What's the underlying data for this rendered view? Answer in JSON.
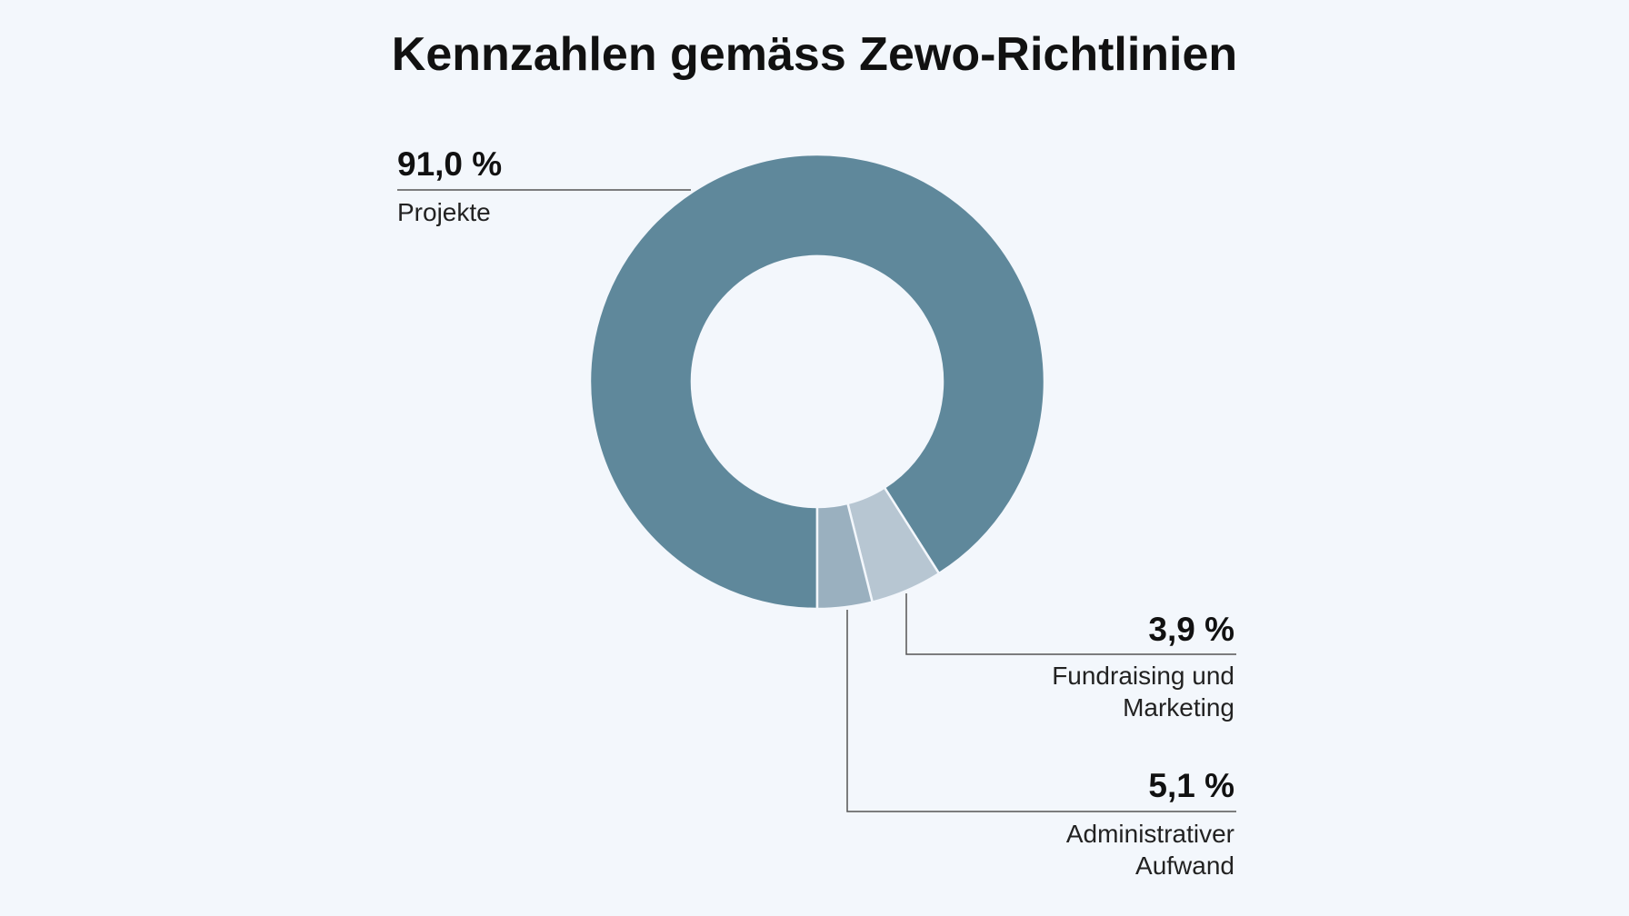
{
  "chart_data": {
    "type": "pie",
    "title": "Kennzahlen gemäss Zewo-Richtlinien",
    "donut": true,
    "slices": [
      {
        "label": "Projekte",
        "value": 91.0,
        "display": "91,0 %",
        "color": "#5f889b"
      },
      {
        "label": "Fundraising und Marketing",
        "value": 3.9,
        "display": "3,9 %",
        "color": "#9ab0bf"
      },
      {
        "label": "Administrativer Aufwand",
        "value": 5.1,
        "display": "5,1 %",
        "color": "#b7c6d2"
      }
    ]
  }
}
